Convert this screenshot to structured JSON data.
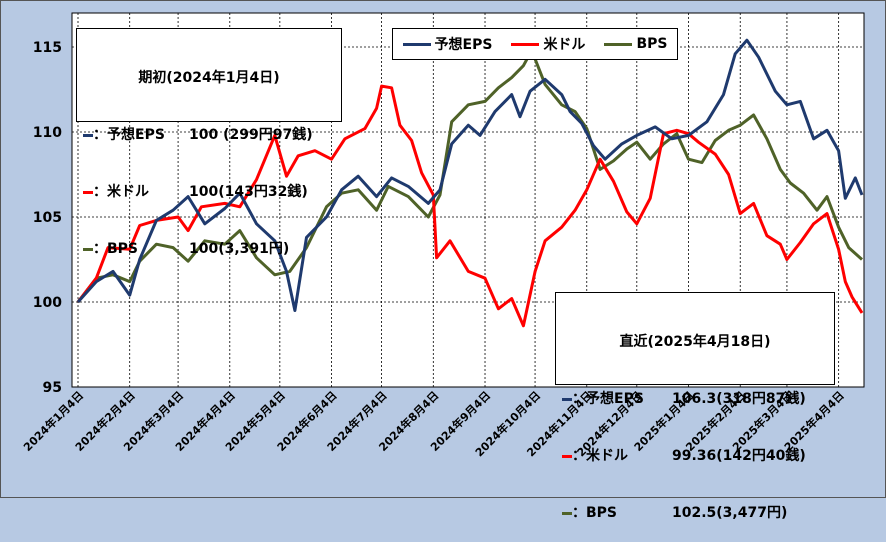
{
  "chart_data": {
    "type": "line",
    "ylim": [
      95,
      117
    ],
    "yticks": [
      95,
      100,
      105,
      110,
      115
    ],
    "grid": true,
    "x_tick_labels": [
      "2024年1月4日",
      "2024年2月4日",
      "2024年3月4日",
      "2024年4月4日",
      "2024年5月4日",
      "2024年6月4日",
      "2024年7月4日",
      "2024年8月4日",
      "2024年9月4日",
      "2024年10月4日",
      "2024年11月4日",
      "2024年12月4日",
      "2025年1月4日",
      "2025年2月4日",
      "2025年3月4日",
      "2025年4月4日"
    ],
    "x_start": "2024-01-04",
    "x_end": "2025-04-18",
    "series": [
      {
        "name": "予想EPS",
        "color": "#1f3a6e",
        "points": [
          [
            "2024-01-04",
            100
          ],
          [
            "2024-01-15",
            101.2
          ],
          [
            "2024-01-25",
            101.8
          ],
          [
            "2024-02-04",
            100.4
          ],
          [
            "2024-02-10",
            102.5
          ],
          [
            "2024-02-20",
            104.8
          ],
          [
            "2024-03-01",
            105.4
          ],
          [
            "2024-03-10",
            106.2
          ],
          [
            "2024-03-20",
            104.6
          ],
          [
            "2024-04-01",
            105.5
          ],
          [
            "2024-04-10",
            106.4
          ],
          [
            "2024-04-20",
            104.6
          ],
          [
            "2024-05-01",
            103.6
          ],
          [
            "2024-05-08",
            101.8
          ],
          [
            "2024-05-13",
            99.5
          ],
          [
            "2024-05-20",
            103.8
          ],
          [
            "2024-06-01",
            105.0
          ],
          [
            "2024-06-10",
            106.6
          ],
          [
            "2024-06-20",
            107.4
          ],
          [
            "2024-07-01",
            106.2
          ],
          [
            "2024-07-10",
            107.3
          ],
          [
            "2024-07-20",
            106.8
          ],
          [
            "2024-08-01",
            105.8
          ],
          [
            "2024-08-08",
            106.6
          ],
          [
            "2024-08-15",
            109.3
          ],
          [
            "2024-08-25",
            110.4
          ],
          [
            "2024-09-01",
            109.8
          ],
          [
            "2024-09-10",
            111.2
          ],
          [
            "2024-09-20",
            112.2
          ],
          [
            "2024-09-25",
            110.9
          ],
          [
            "2024-10-01",
            112.4
          ],
          [
            "2024-10-10",
            113.1
          ],
          [
            "2024-10-20",
            112.2
          ],
          [
            "2024-10-25",
            111.2
          ],
          [
            "2024-11-01",
            110.5
          ],
          [
            "2024-11-08",
            109.2
          ],
          [
            "2024-11-15",
            108.4
          ],
          [
            "2024-11-25",
            109.3
          ],
          [
            "2024-12-04",
            109.8
          ],
          [
            "2024-12-15",
            110.3
          ],
          [
            "2024-12-25",
            109.6
          ],
          [
            "2025-01-04",
            109.8
          ],
          [
            "2025-01-15",
            110.6
          ],
          [
            "2025-01-25",
            112.2
          ],
          [
            "2025-02-01",
            114.6
          ],
          [
            "2025-02-08",
            115.4
          ],
          [
            "2025-02-15",
            114.4
          ],
          [
            "2025-02-25",
            112.4
          ],
          [
            "2025-03-04",
            111.6
          ],
          [
            "2025-03-12",
            111.8
          ],
          [
            "2025-03-20",
            109.6
          ],
          [
            "2025-03-28",
            110.1
          ],
          [
            "2025-04-04",
            108.9
          ],
          [
            "2025-04-08",
            106.1
          ],
          [
            "2025-04-14",
            107.3
          ],
          [
            "2025-04-18",
            106.3
          ]
        ]
      },
      {
        "name": "米ドル",
        "color": "#ff0000",
        "points": [
          [
            "2024-01-04",
            100
          ],
          [
            "2024-01-15",
            101.4
          ],
          [
            "2024-01-22",
            103.2
          ],
          [
            "2024-02-04",
            103.1
          ],
          [
            "2024-02-10",
            104.5
          ],
          [
            "2024-02-20",
            104.8
          ],
          [
            "2024-03-04",
            105.0
          ],
          [
            "2024-03-10",
            104.2
          ],
          [
            "2024-03-18",
            105.6
          ],
          [
            "2024-04-01",
            105.8
          ],
          [
            "2024-04-10",
            105.6
          ],
          [
            "2024-04-20",
            107.2
          ],
          [
            "2024-05-01",
            109.8
          ],
          [
            "2024-05-08",
            107.4
          ],
          [
            "2024-05-15",
            108.6
          ],
          [
            "2024-05-25",
            108.9
          ],
          [
            "2024-06-04",
            108.4
          ],
          [
            "2024-06-12",
            109.6
          ],
          [
            "2024-06-24",
            110.2
          ],
          [
            "2024-07-01",
            111.4
          ],
          [
            "2024-07-04",
            112.7
          ],
          [
            "2024-07-10",
            112.6
          ],
          [
            "2024-07-15",
            110.4
          ],
          [
            "2024-07-22",
            109.5
          ],
          [
            "2024-07-28",
            107.6
          ],
          [
            "2024-08-04",
            106.3
          ],
          [
            "2024-08-06",
            102.6
          ],
          [
            "2024-08-14",
            103.6
          ],
          [
            "2024-08-25",
            101.8
          ],
          [
            "2024-09-04",
            101.4
          ],
          [
            "2024-09-12",
            99.6
          ],
          [
            "2024-09-20",
            100.2
          ],
          [
            "2024-09-27",
            98.6
          ],
          [
            "2024-10-04",
            101.8
          ],
          [
            "2024-10-10",
            103.6
          ],
          [
            "2024-10-20",
            104.4
          ],
          [
            "2024-10-28",
            105.4
          ],
          [
            "2024-11-04",
            106.6
          ],
          [
            "2024-11-12",
            108.4
          ],
          [
            "2024-11-20",
            107.1
          ],
          [
            "2024-11-28",
            105.3
          ],
          [
            "2024-12-04",
            104.6
          ],
          [
            "2024-12-12",
            106.1
          ],
          [
            "2024-12-20",
            109.9
          ],
          [
            "2024-12-28",
            110.1
          ],
          [
            "2025-01-04",
            109.9
          ],
          [
            "2025-01-10",
            109.4
          ],
          [
            "2025-01-20",
            108.7
          ],
          [
            "2025-01-28",
            107.5
          ],
          [
            "2025-02-04",
            105.2
          ],
          [
            "2025-02-12",
            105.8
          ],
          [
            "2025-02-20",
            103.9
          ],
          [
            "2025-02-28",
            103.4
          ],
          [
            "2025-03-04",
            102.5
          ],
          [
            "2025-03-12",
            103.5
          ],
          [
            "2025-03-20",
            104.6
          ],
          [
            "2025-03-28",
            105.2
          ],
          [
            "2025-04-04",
            103.1
          ],
          [
            "2025-04-08",
            101.2
          ],
          [
            "2025-04-12",
            100.3
          ],
          [
            "2025-04-18",
            99.36
          ]
        ]
      },
      {
        "name": "BPS",
        "color": "#4f6228",
        "points": [
          [
            "2024-01-04",
            100
          ],
          [
            "2024-01-15",
            101.4
          ],
          [
            "2024-01-25",
            101.6
          ],
          [
            "2024-02-04",
            101.2
          ],
          [
            "2024-02-10",
            102.4
          ],
          [
            "2024-02-20",
            103.4
          ],
          [
            "2024-03-01",
            103.2
          ],
          [
            "2024-03-10",
            102.4
          ],
          [
            "2024-03-20",
            103.6
          ],
          [
            "2024-04-01",
            103.4
          ],
          [
            "2024-04-10",
            104.2
          ],
          [
            "2024-04-20",
            102.6
          ],
          [
            "2024-05-01",
            101.6
          ],
          [
            "2024-05-10",
            101.8
          ],
          [
            "2024-05-20",
            103.2
          ],
          [
            "2024-06-01",
            105.6
          ],
          [
            "2024-06-10",
            106.4
          ],
          [
            "2024-06-20",
            106.6
          ],
          [
            "2024-07-01",
            105.4
          ],
          [
            "2024-07-08",
            106.8
          ],
          [
            "2024-07-20",
            106.2
          ],
          [
            "2024-08-01",
            105.0
          ],
          [
            "2024-08-08",
            106.3
          ],
          [
            "2024-08-15",
            110.6
          ],
          [
            "2024-08-25",
            111.6
          ],
          [
            "2024-09-04",
            111.8
          ],
          [
            "2024-09-12",
            112.6
          ],
          [
            "2024-09-20",
            113.2
          ],
          [
            "2024-09-27",
            113.9
          ],
          [
            "2024-10-02",
            114.8
          ],
          [
            "2024-10-10",
            112.8
          ],
          [
            "2024-10-20",
            111.6
          ],
          [
            "2024-10-28",
            111.2
          ],
          [
            "2024-11-04",
            110.2
          ],
          [
            "2024-11-12",
            107.8
          ],
          [
            "2024-11-20",
            108.3
          ],
          [
            "2024-11-28",
            109.0
          ],
          [
            "2024-12-04",
            109.4
          ],
          [
            "2024-12-12",
            108.4
          ],
          [
            "2024-12-20",
            109.3
          ],
          [
            "2024-12-28",
            109.9
          ],
          [
            "2025-01-04",
            108.4
          ],
          [
            "2025-01-12",
            108.2
          ],
          [
            "2025-01-20",
            109.5
          ],
          [
            "2025-01-28",
            110.1
          ],
          [
            "2025-02-04",
            110.4
          ],
          [
            "2025-02-12",
            111.0
          ],
          [
            "2025-02-20",
            109.6
          ],
          [
            "2025-02-28",
            107.8
          ],
          [
            "2025-03-06",
            107.0
          ],
          [
            "2025-03-14",
            106.4
          ],
          [
            "2025-03-22",
            105.4
          ],
          [
            "2025-03-28",
            106.2
          ],
          [
            "2025-04-04",
            104.4
          ],
          [
            "2025-04-10",
            103.2
          ],
          [
            "2025-04-18",
            102.5
          ]
        ]
      }
    ]
  },
  "legend_top": [
    {
      "label": "予想EPS",
      "color": "#1f3a6e"
    },
    {
      "label": "米ドル",
      "color": "#ff0000"
    },
    {
      "label": "BPS",
      "color": "#4f6228"
    }
  ],
  "box_initial": {
    "title": "期初(2024年1月4日)",
    "rows": [
      {
        "label": "：予想EPS",
        "value": "100 (299円97銭)",
        "color": "#1f3a6e"
      },
      {
        "label": "：米ドル",
        "value": "100(143円32銭)",
        "color": "#ff0000"
      },
      {
        "label": "：BPS",
        "value": "100(3,391円)",
        "color": "#4f6228"
      }
    ]
  },
  "box_recent": {
    "title": "直近(2025年4月18日)",
    "rows": [
      {
        "label": "：予想EPS",
        "value": "106.3(318円87銭)",
        "color": "#1f3a6e"
      },
      {
        "label": "：米ドル",
        "value": "99.36(142円40銭)",
        "color": "#ff0000"
      },
      {
        "label": "：BPS",
        "value": "102.5(3,477円)",
        "color": "#4f6228"
      }
    ]
  }
}
